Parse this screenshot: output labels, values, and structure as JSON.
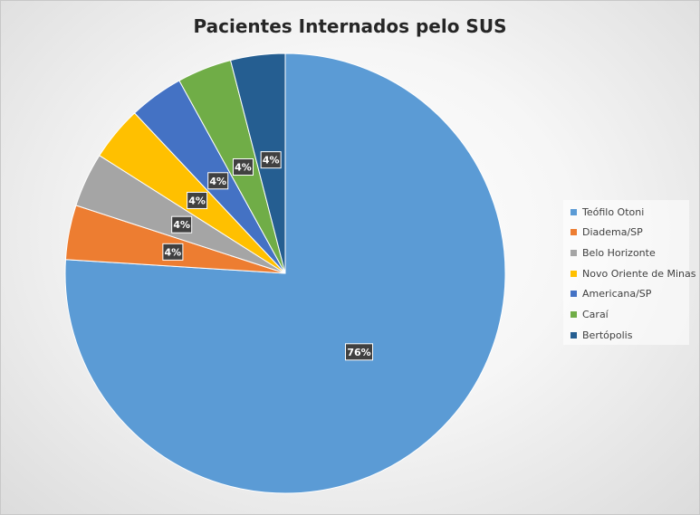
{
  "chart_data": {
    "type": "pie",
    "title": "Pacientes Internados pelo SUS",
    "categories": [
      "Teófilo Otoni",
      "Diadema/SP",
      "Belo Horizonte",
      "Novo Oriente de Minas",
      "Americana/SP",
      "Caraí",
      "Bertópolis"
    ],
    "values": [
      76,
      4,
      4,
      4,
      4,
      4,
      4
    ],
    "data_labels": [
      "76%",
      "4%",
      "4%",
      "4%",
      "4%",
      "4%",
      "4%"
    ],
    "colors": [
      "#5b9bd5",
      "#ed7d31",
      "#a5a5a5",
      "#ffc000",
      "#4472c4",
      "#70ad47",
      "#255e91"
    ],
    "legend_position": "right"
  }
}
